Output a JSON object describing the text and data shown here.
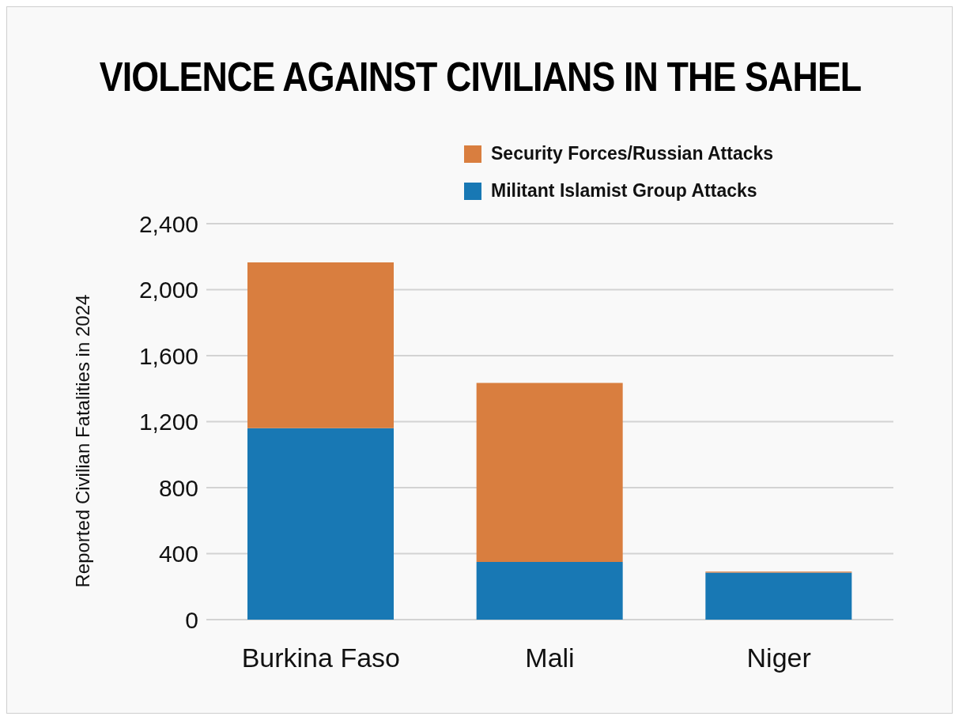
{
  "chart_data": {
    "type": "bar",
    "title": "VIOLENCE AGAINST CIVILIANS IN THE SAHEL",
    "ylabel": "Reported Civilian Fatalities in 2024",
    "categories": [
      "Burkina Faso",
      "Mali",
      "Niger"
    ],
    "series": [
      {
        "name": "Militant Islamist Group Attacks",
        "color": "#1878b4",
        "values": [
          1160,
          350,
          285
        ]
      },
      {
        "name": "Security Forces/Russian Attacks",
        "color": "#d97e3f",
        "values": [
          1005,
          1085,
          6
        ]
      }
    ],
    "stacked": true,
    "ylim": [
      0,
      2400
    ],
    "yticks": [
      0,
      400,
      800,
      {
        "value": 1200,
        "label": "1,200"
      },
      {
        "value": 1600,
        "label": "1,600"
      },
      {
        "value": 2000,
        "label": "2,000"
      },
      {
        "value": 2400,
        "label": "2,400"
      }
    ],
    "grid": "y",
    "legend": "top right"
  }
}
